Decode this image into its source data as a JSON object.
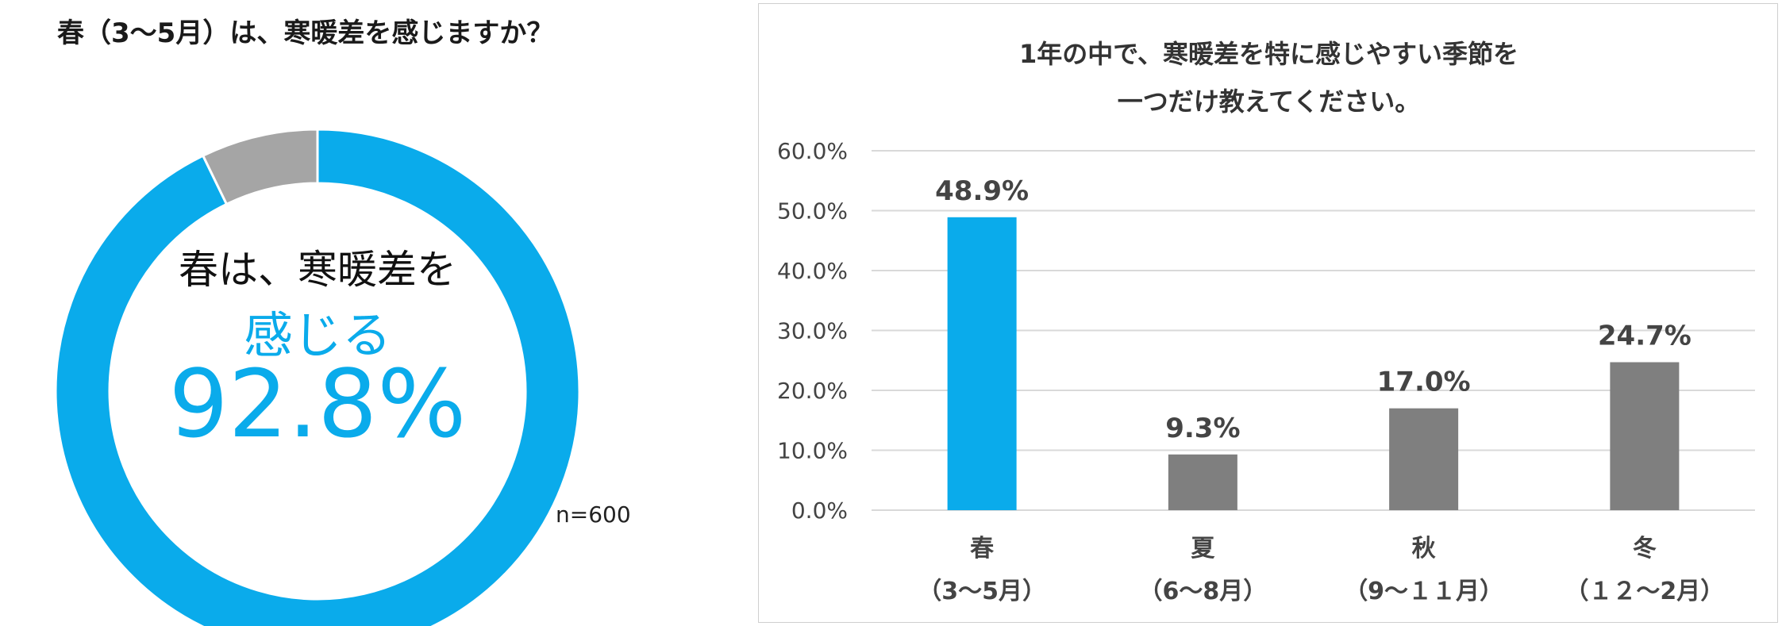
{
  "colors": {
    "accent": "#0aabeb",
    "gray_bar": "#7f7f7f",
    "gray_slice": "#a5a5a5",
    "grid": "#d9d9d9"
  },
  "donut": {
    "title": "春（3～5月）は、寒暖差を感じますか？",
    "center_line1": "春は、寒暖差を",
    "center_line2": "感じる",
    "center_line3": "92.8%",
    "sample": "n=600"
  },
  "bar": {
    "title_line1": "1年の中で、寒暖差を特に感じやすい季節を",
    "title_line2": "一つだけ教えてください。"
  },
  "chart_data": [
    {
      "type": "pie",
      "title": "春（3～5月）は、寒暖差を感じますか？",
      "values": [
        92.8,
        7.2
      ],
      "colors": [
        "#0aabeb",
        "#a5a5a5"
      ],
      "unit": "%",
      "annotation": "n=600"
    },
    {
      "type": "bar",
      "title": "1年の中で、寒暖差を特に感じやすい季節を一つだけ教えてください。",
      "categories": [
        "春",
        "夏",
        "秋",
        "冬"
      ],
      "category_sublabels": [
        "（3～5月）",
        "（6～8月）",
        "（9～１１月）",
        "（１２～2月）"
      ],
      "values": [
        48.9,
        9.3,
        17.0,
        24.7
      ],
      "value_labels": [
        "48.9%",
        "9.3%",
        "17.0%",
        "24.7%"
      ],
      "colors": [
        "#0aabeb",
        "#7f7f7f",
        "#7f7f7f",
        "#7f7f7f"
      ],
      "ylim": [
        0,
        60
      ],
      "yticks": [
        0,
        10,
        20,
        30,
        40,
        50,
        60
      ],
      "ytick_labels": [
        "0.0%",
        "10.0%",
        "20.0%",
        "30.0%",
        "40.0%",
        "50.0%",
        "60.0%"
      ],
      "grid": true,
      "legend": "none"
    }
  ]
}
